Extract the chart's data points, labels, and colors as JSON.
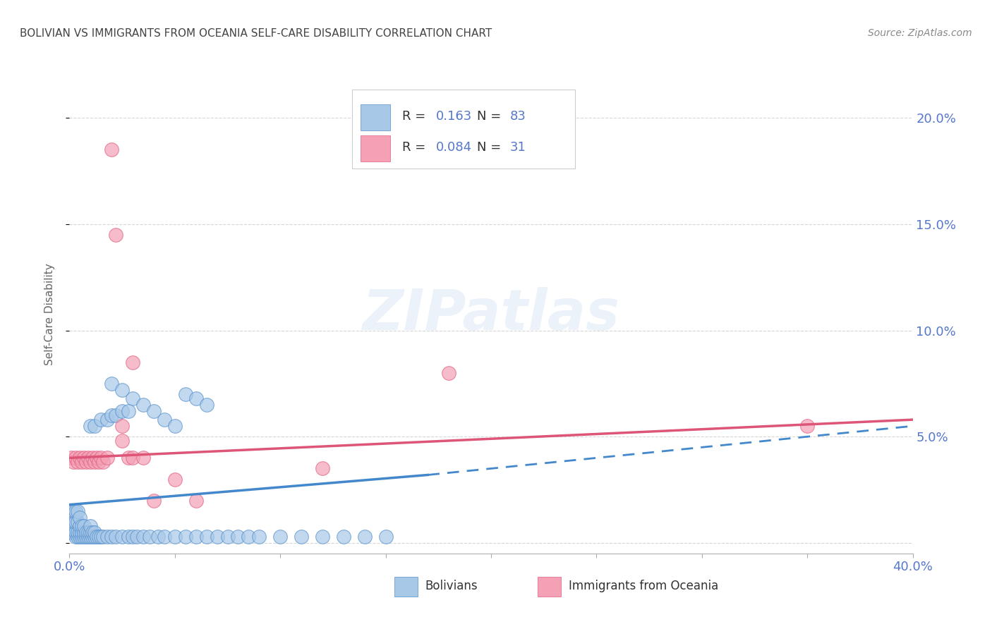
{
  "title": "BOLIVIAN VS IMMIGRANTS FROM OCEANIA SELF-CARE DISABILITY CORRELATION CHART",
  "source": "Source: ZipAtlas.com",
  "ylabel": "Self-Care Disability",
  "watermark": "ZIPatlas",
  "xlim": [
    0.0,
    0.4
  ],
  "ylim": [
    -0.005,
    0.22
  ],
  "yticks": [
    0.0,
    0.05,
    0.1,
    0.15,
    0.2
  ],
  "ytick_labels": [
    "",
    "5.0%",
    "10.0%",
    "15.0%",
    "20.0%"
  ],
  "xticks": [
    0.0,
    0.05,
    0.1,
    0.15,
    0.2,
    0.25,
    0.3,
    0.35,
    0.4
  ],
  "blue_color": "#a8c8e8",
  "pink_color": "#f4a0b5",
  "blue_edge_color": "#5590cc",
  "pink_edge_color": "#e06080",
  "blue_line_color": "#4488cc",
  "pink_line_color": "#dd5577",
  "axis_label_color": "#5577cc",
  "title_color": "#444444",
  "source_color": "#888888",
  "background_color": "#ffffff",
  "grid_color": "#cccccc",
  "bolivians_x": [
    0.001,
    0.001,
    0.001,
    0.002,
    0.002,
    0.002,
    0.003,
    0.003,
    0.003,
    0.003,
    0.004,
    0.004,
    0.004,
    0.004,
    0.005,
    0.005,
    0.005,
    0.005,
    0.006,
    0.006,
    0.006,
    0.007,
    0.007,
    0.007,
    0.008,
    0.008,
    0.009,
    0.009,
    0.01,
    0.01,
    0.01,
    0.011,
    0.011,
    0.012,
    0.012,
    0.013,
    0.014,
    0.015,
    0.016,
    0.018,
    0.02,
    0.022,
    0.025,
    0.028,
    0.03,
    0.032,
    0.035,
    0.038,
    0.042,
    0.045,
    0.05,
    0.055,
    0.06,
    0.065,
    0.07,
    0.075,
    0.08,
    0.085,
    0.09,
    0.1,
    0.11,
    0.12,
    0.13,
    0.14,
    0.15,
    0.055,
    0.06,
    0.065,
    0.02,
    0.025,
    0.03,
    0.035,
    0.04,
    0.045,
    0.05,
    0.01,
    0.012,
    0.015,
    0.018,
    0.02,
    0.022,
    0.025,
    0.028
  ],
  "bolivians_y": [
    0.005,
    0.01,
    0.015,
    0.005,
    0.01,
    0.015,
    0.003,
    0.005,
    0.01,
    0.015,
    0.003,
    0.005,
    0.01,
    0.015,
    0.003,
    0.005,
    0.008,
    0.012,
    0.003,
    0.005,
    0.008,
    0.003,
    0.005,
    0.008,
    0.003,
    0.005,
    0.003,
    0.005,
    0.003,
    0.005,
    0.008,
    0.003,
    0.005,
    0.003,
    0.005,
    0.003,
    0.003,
    0.003,
    0.003,
    0.003,
    0.003,
    0.003,
    0.003,
    0.003,
    0.003,
    0.003,
    0.003,
    0.003,
    0.003,
    0.003,
    0.003,
    0.003,
    0.003,
    0.003,
    0.003,
    0.003,
    0.003,
    0.003,
    0.003,
    0.003,
    0.003,
    0.003,
    0.003,
    0.003,
    0.003,
    0.07,
    0.068,
    0.065,
    0.075,
    0.072,
    0.068,
    0.065,
    0.062,
    0.058,
    0.055,
    0.055,
    0.055,
    0.058,
    0.058,
    0.06,
    0.06,
    0.062,
    0.062
  ],
  "oceania_x": [
    0.001,
    0.002,
    0.003,
    0.004,
    0.005,
    0.006,
    0.007,
    0.008,
    0.009,
    0.01,
    0.011,
    0.012,
    0.013,
    0.014,
    0.015,
    0.016,
    0.018,
    0.02,
    0.022,
    0.025,
    0.028,
    0.03,
    0.035,
    0.04,
    0.05,
    0.06,
    0.12,
    0.18,
    0.35,
    0.025,
    0.03
  ],
  "oceania_y": [
    0.04,
    0.038,
    0.04,
    0.038,
    0.04,
    0.038,
    0.04,
    0.038,
    0.04,
    0.038,
    0.04,
    0.038,
    0.04,
    0.038,
    0.04,
    0.038,
    0.04,
    0.185,
    0.145,
    0.055,
    0.04,
    0.04,
    0.04,
    0.02,
    0.03,
    0.02,
    0.035,
    0.08,
    0.055,
    0.048,
    0.085
  ],
  "blue_line_x0": 0.0,
  "blue_line_x_solid_end": 0.17,
  "blue_line_x1": 0.4,
  "blue_line_y0": 0.018,
  "blue_line_y_solid_end": 0.032,
  "blue_line_y1": 0.055,
  "pink_line_x0": 0.0,
  "pink_line_x1": 0.4,
  "pink_line_y0": 0.04,
  "pink_line_y1": 0.058
}
